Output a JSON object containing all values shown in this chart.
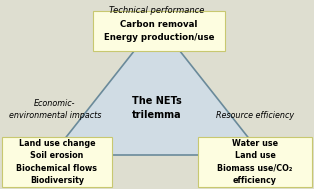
{
  "bg_color": "#deded0",
  "triangle_fill": "#d0dce4",
  "triangle_edge": "#6a8a9a",
  "box_fill": "#fdfde0",
  "box_edge": "#c8c870",
  "center_label": "The NETs\ntrilemma",
  "top_label": "Technical performance",
  "left_label": "Economic-\nenvironmental impacts",
  "right_label": "Resource efficiency",
  "top_box": "Carbon removal\nEnergy production/use",
  "left_box": "Land use change\nSoil erosion\nBiochemical flows\nBiodiversity",
  "right_box": "Water use\nLand use\nBiomass use/CO₂\nefficiency",
  "fig_width": 3.14,
  "fig_height": 1.89,
  "dpi": 100
}
